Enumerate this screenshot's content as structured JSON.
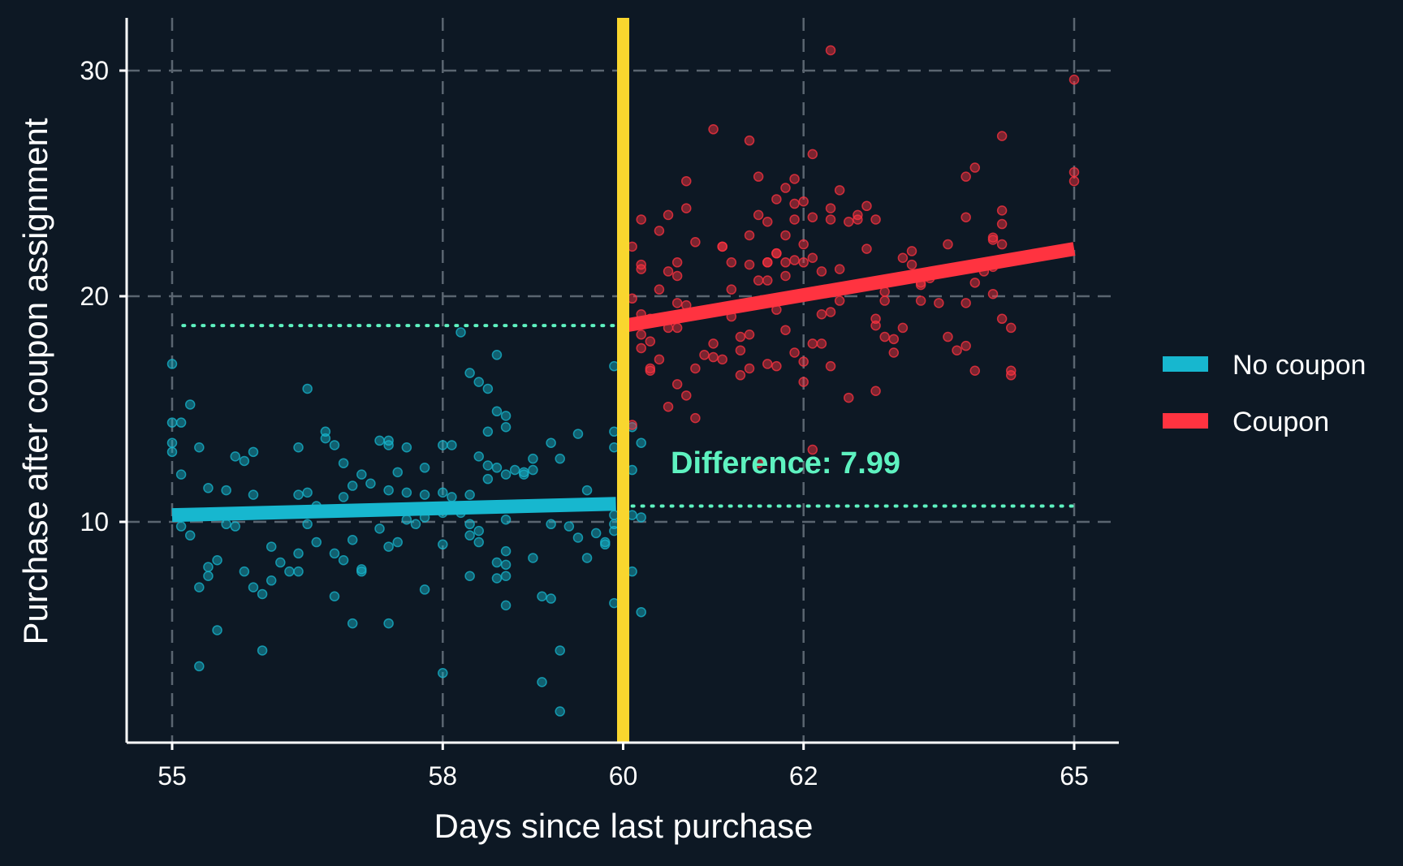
{
  "chart_data": {
    "type": "scatter",
    "xlabel": "Days since last purchase",
    "ylabel": "Purchase after coupon assignment",
    "xlim": [
      55,
      65
    ],
    "ylim": [
      0,
      32
    ],
    "x_ticks": [
      55,
      58,
      60,
      62,
      65
    ],
    "y_ticks": [
      10,
      20,
      30
    ],
    "grid": true,
    "legend_position": "right",
    "cutoff": 60,
    "annotation": "Difference: 7.99",
    "colors": {
      "background": "#0d1824",
      "no_coupon": "#17b7cf",
      "coupon": "#ff3340",
      "cutoff": "#f9d62e",
      "annotation": "#5ef2c0",
      "grid": "#5a6570"
    },
    "series": [
      {
        "name": "No coupon",
        "fit": {
          "x": [
            55,
            59.92
          ],
          "y": [
            10.3,
            10.8
          ]
        },
        "reference_level": 18.7,
        "points": [
          [
            55.0,
            17.0
          ],
          [
            55.0,
            14.4
          ],
          [
            55.0,
            13.5
          ],
          [
            55.0,
            13.1
          ],
          [
            55.1,
            14.4
          ],
          [
            55.1,
            12.1
          ],
          [
            55.1,
            9.8
          ],
          [
            55.2,
            15.2
          ],
          [
            55.2,
            9.4
          ],
          [
            55.3,
            13.3
          ],
          [
            55.3,
            7.1
          ],
          [
            55.3,
            3.6
          ],
          [
            55.4,
            11.5
          ],
          [
            55.4,
            8.0
          ],
          [
            55.4,
            7.6
          ],
          [
            55.5,
            8.3
          ],
          [
            55.5,
            5.2
          ],
          [
            55.6,
            11.4
          ],
          [
            55.6,
            9.9
          ],
          [
            55.7,
            9.8
          ],
          [
            55.7,
            12.9
          ],
          [
            55.8,
            12.7
          ],
          [
            55.8,
            7.8
          ],
          [
            55.9,
            13.1
          ],
          [
            55.9,
            11.2
          ],
          [
            55.9,
            7.1
          ],
          [
            56.0,
            6.8
          ],
          [
            56.0,
            4.3
          ],
          [
            56.1,
            8.9
          ],
          [
            56.1,
            7.4
          ],
          [
            56.2,
            8.2
          ],
          [
            56.3,
            7.8
          ],
          [
            56.4,
            13.3
          ],
          [
            56.4,
            11.2
          ],
          [
            56.4,
            8.6
          ],
          [
            56.4,
            7.8
          ],
          [
            56.5,
            11.3
          ],
          [
            56.5,
            9.9
          ],
          [
            56.5,
            15.9
          ],
          [
            56.6,
            9.1
          ],
          [
            56.6,
            10.7
          ],
          [
            56.7,
            14.0
          ],
          [
            56.7,
            13.7
          ],
          [
            56.8,
            13.4
          ],
          [
            56.8,
            8.6
          ],
          [
            56.8,
            6.7
          ],
          [
            56.9,
            12.6
          ],
          [
            56.9,
            11.1
          ],
          [
            56.9,
            8.3
          ],
          [
            57.0,
            9.2
          ],
          [
            57.0,
            11.6
          ],
          [
            57.0,
            5.5
          ],
          [
            57.1,
            12.1
          ],
          [
            57.1,
            7.9
          ],
          [
            57.1,
            7.8
          ],
          [
            57.2,
            11.7
          ],
          [
            57.3,
            13.6
          ],
          [
            57.3,
            9.7
          ],
          [
            57.4,
            13.6
          ],
          [
            57.4,
            13.4
          ],
          [
            57.4,
            11.4
          ],
          [
            57.4,
            8.9
          ],
          [
            57.4,
            5.5
          ],
          [
            57.5,
            12.2
          ],
          [
            57.5,
            10.5
          ],
          [
            57.5,
            9.1
          ],
          [
            57.6,
            13.3
          ],
          [
            57.6,
            11.3
          ],
          [
            57.6,
            10.1
          ],
          [
            57.7,
            9.9
          ],
          [
            57.8,
            12.4
          ],
          [
            57.8,
            11.2
          ],
          [
            57.8,
            7.0
          ],
          [
            57.8,
            10.2
          ],
          [
            58.0,
            13.4
          ],
          [
            58.0,
            11.3
          ],
          [
            58.0,
            10.4
          ],
          [
            58.0,
            9.0
          ],
          [
            58.0,
            3.3
          ],
          [
            58.1,
            13.4
          ],
          [
            58.1,
            11.1
          ],
          [
            58.2,
            18.4
          ],
          [
            58.2,
            10.4
          ],
          [
            58.3,
            16.6
          ],
          [
            58.3,
            11.2
          ],
          [
            58.3,
            9.9
          ],
          [
            58.3,
            9.4
          ],
          [
            58.3,
            7.6
          ],
          [
            58.4,
            16.2
          ],
          [
            58.4,
            12.9
          ],
          [
            58.4,
            9.6
          ],
          [
            58.4,
            9.1
          ],
          [
            58.5,
            15.9
          ],
          [
            58.5,
            14.0
          ],
          [
            58.5,
            12.5
          ],
          [
            58.5,
            11.9
          ],
          [
            58.6,
            17.4
          ],
          [
            58.6,
            14.9
          ],
          [
            58.6,
            12.4
          ],
          [
            58.6,
            8.2
          ],
          [
            58.6,
            7.5
          ],
          [
            58.7,
            14.7
          ],
          [
            58.7,
            14.2
          ],
          [
            58.7,
            12.1
          ],
          [
            58.7,
            10.1
          ],
          [
            58.7,
            8.7
          ],
          [
            58.7,
            8.1
          ],
          [
            58.7,
            7.6
          ],
          [
            58.7,
            6.3
          ],
          [
            58.8,
            12.3
          ],
          [
            58.9,
            12.2
          ],
          [
            58.9,
            12.1
          ],
          [
            59.0,
            12.8
          ],
          [
            59.0,
            12.3
          ],
          [
            59.0,
            8.4
          ],
          [
            59.1,
            6.7
          ],
          [
            59.1,
            2.9
          ],
          [
            59.2,
            13.5
          ],
          [
            59.2,
            9.9
          ],
          [
            59.2,
            6.6
          ],
          [
            59.3,
            12.8
          ],
          [
            59.3,
            4.3
          ],
          [
            59.3,
            1.6
          ],
          [
            59.4,
            9.8
          ],
          [
            59.5,
            13.9
          ],
          [
            59.5,
            9.3
          ],
          [
            59.6,
            10.8
          ],
          [
            59.6,
            11.4
          ],
          [
            59.6,
            8.4
          ],
          [
            59.7,
            9.5
          ],
          [
            59.8,
            9.0
          ],
          [
            59.8,
            9.1
          ],
          [
            59.9,
            9.9
          ],
          [
            59.9,
            16.9
          ],
          [
            59.9,
            14.0
          ],
          [
            59.9,
            13.3
          ],
          [
            59.9,
            10.3
          ],
          [
            59.9,
            9.6
          ],
          [
            59.9,
            6.4
          ],
          [
            60.0,
            16.8
          ],
          [
            60.0,
            12.3
          ],
          [
            60.0,
            8.9
          ],
          [
            60.0,
            7.2
          ],
          [
            60.0,
            12.2
          ],
          [
            60.1,
            14.2
          ],
          [
            60.1,
            12.3
          ],
          [
            60.1,
            10.3
          ],
          [
            60.1,
            7.8
          ],
          [
            60.2,
            13.5
          ],
          [
            60.2,
            10.2
          ],
          [
            60.2,
            6.0
          ]
        ]
      },
      {
        "name": "Coupon",
        "fit": {
          "x": [
            60.02,
            65
          ],
          "y": [
            18.7,
            22.1
          ]
        },
        "reference_level": 10.7,
        "points": [
          [
            60.0,
            12.4
          ],
          [
            60.0,
            10.4
          ],
          [
            60.0,
            7.9
          ],
          [
            60.1,
            22.2
          ],
          [
            60.1,
            19.9
          ],
          [
            60.1,
            14.3
          ],
          [
            60.2,
            23.4
          ],
          [
            60.2,
            21.4
          ],
          [
            60.2,
            21.2
          ],
          [
            60.2,
            19.2
          ],
          [
            60.2,
            18.3
          ],
          [
            60.2,
            17.7
          ],
          [
            60.3,
            18.0
          ],
          [
            60.3,
            16.7
          ],
          [
            60.3,
            16.8
          ],
          [
            60.3,
            19.0
          ],
          [
            60.4,
            22.9
          ],
          [
            60.4,
            20.3
          ],
          [
            60.4,
            17.2
          ],
          [
            60.5,
            23.6
          ],
          [
            60.5,
            21.1
          ],
          [
            60.5,
            18.6
          ],
          [
            60.5,
            15.1
          ],
          [
            60.6,
            21.5
          ],
          [
            60.6,
            20.9
          ],
          [
            60.6,
            19.7
          ],
          [
            60.6,
            18.6
          ],
          [
            60.6,
            16.1
          ],
          [
            60.7,
            19.6
          ],
          [
            60.7,
            15.6
          ],
          [
            60.7,
            25.1
          ],
          [
            60.7,
            23.9
          ],
          [
            60.8,
            22.4
          ],
          [
            60.8,
            14.6
          ],
          [
            60.8,
            16.8
          ],
          [
            60.9,
            17.4
          ],
          [
            61.0,
            27.4
          ],
          [
            61.0,
            17.9
          ],
          [
            61.0,
            17.3
          ],
          [
            61.1,
            17.2
          ],
          [
            61.1,
            22.2
          ],
          [
            61.1,
            22.2
          ],
          [
            61.2,
            21.5
          ],
          [
            61.2,
            19.1
          ],
          [
            61.2,
            20.3
          ],
          [
            61.3,
            18.2
          ],
          [
            61.3,
            16.5
          ],
          [
            61.3,
            17.6
          ],
          [
            61.4,
            22.7
          ],
          [
            61.4,
            21.4
          ],
          [
            61.4,
            16.8
          ],
          [
            61.4,
            18.3
          ],
          [
            61.4,
            26.9
          ],
          [
            61.5,
            20.7
          ],
          [
            61.5,
            12.6
          ],
          [
            61.5,
            25.3
          ],
          [
            61.5,
            23.6
          ],
          [
            61.6,
            21.5
          ],
          [
            61.6,
            23.3
          ],
          [
            61.6,
            21.5
          ],
          [
            61.6,
            20.7
          ],
          [
            61.6,
            17.0
          ],
          [
            61.7,
            24.3
          ],
          [
            61.7,
            21.9
          ],
          [
            61.7,
            21.9
          ],
          [
            61.7,
            19.4
          ],
          [
            61.7,
            16.9
          ],
          [
            61.8,
            24.8
          ],
          [
            61.8,
            22.7
          ],
          [
            61.8,
            21.5
          ],
          [
            61.8,
            20.9
          ],
          [
            61.8,
            18.5
          ],
          [
            61.9,
            25.2
          ],
          [
            61.9,
            24.1
          ],
          [
            61.9,
            23.4
          ],
          [
            61.9,
            21.6
          ],
          [
            61.9,
            17.5
          ],
          [
            62.0,
            24.2
          ],
          [
            62.0,
            21.5
          ],
          [
            62.0,
            17.1
          ],
          [
            62.0,
            16.2
          ],
          [
            62.0,
            22.3
          ],
          [
            62.1,
            26.3
          ],
          [
            62.1,
            23.5
          ],
          [
            62.1,
            21.7
          ],
          [
            62.1,
            20.2
          ],
          [
            62.1,
            17.9
          ],
          [
            62.1,
            13.2
          ],
          [
            62.2,
            21.1
          ],
          [
            62.2,
            19.2
          ],
          [
            62.2,
            17.9
          ],
          [
            62.3,
            30.9
          ],
          [
            62.3,
            23.9
          ],
          [
            62.3,
            23.4
          ],
          [
            62.3,
            19.3
          ],
          [
            62.3,
            16.9
          ],
          [
            62.4,
            24.7
          ],
          [
            62.4,
            21.2
          ],
          [
            62.4,
            19.8
          ],
          [
            62.5,
            23.3
          ],
          [
            62.5,
            15.5
          ],
          [
            62.6,
            23.6
          ],
          [
            62.6,
            23.4
          ],
          [
            62.7,
            24.0
          ],
          [
            62.7,
            22.1
          ],
          [
            62.8,
            23.4
          ],
          [
            62.8,
            19.0
          ],
          [
            62.8,
            18.7
          ],
          [
            62.8,
            15.8
          ],
          [
            62.9,
            20.2
          ],
          [
            62.9,
            19.8
          ],
          [
            62.9,
            18.2
          ],
          [
            63.0,
            18.1
          ],
          [
            63.0,
            17.5
          ],
          [
            63.1,
            21.7
          ],
          [
            63.1,
            18.6
          ],
          [
            63.2,
            22.0
          ],
          [
            63.2,
            21.4
          ],
          [
            63.3,
            20.6
          ],
          [
            63.3,
            19.8
          ],
          [
            63.3,
            20.5
          ],
          [
            63.4,
            20.8
          ],
          [
            63.5,
            19.7
          ],
          [
            63.6,
            22.3
          ],
          [
            63.6,
            18.2
          ],
          [
            63.7,
            17.6
          ],
          [
            63.8,
            23.5
          ],
          [
            63.8,
            19.7
          ],
          [
            63.8,
            25.3
          ],
          [
            63.8,
            17.8
          ],
          [
            63.9,
            25.7
          ],
          [
            63.9,
            20.6
          ],
          [
            63.9,
            16.7
          ],
          [
            64.0,
            21.1
          ],
          [
            64.1,
            22.6
          ],
          [
            64.1,
            22.5
          ],
          [
            64.1,
            21.3
          ],
          [
            64.1,
            20.1
          ],
          [
            64.2,
            27.1
          ],
          [
            64.2,
            23.8
          ],
          [
            64.2,
            23.2
          ],
          [
            64.2,
            22.3
          ],
          [
            64.2,
            19.0
          ],
          [
            64.3,
            16.7
          ],
          [
            64.3,
            16.5
          ],
          [
            64.3,
            18.6
          ],
          [
            65.0,
            29.6
          ],
          [
            65.0,
            25.5
          ],
          [
            65.0,
            25.1
          ]
        ]
      }
    ]
  }
}
